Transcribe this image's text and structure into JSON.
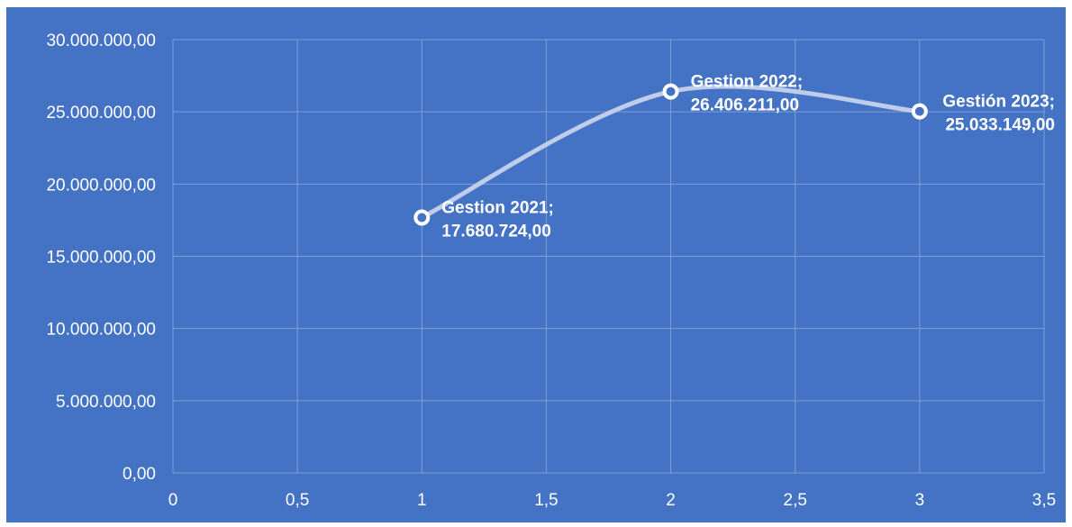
{
  "colors": {
    "background": "#4472c4",
    "gridline": "#7f9fd8",
    "line": "#bfcde9",
    "marker_fill": "#4472c4",
    "marker_stroke": "#ffffff",
    "text": "#ffffff"
  },
  "chart_data": {
    "type": "scatter",
    "title": "",
    "xlabel": "",
    "ylabel": "",
    "xlim": [
      0,
      3.5
    ],
    "ylim": [
      0,
      30000000
    ],
    "x_ticks": [
      0,
      0.5,
      1,
      1.5,
      2,
      2.5,
      3,
      3.5
    ],
    "x_tick_labels": [
      "0",
      "0,5",
      "1",
      "1,5",
      "2",
      "2,5",
      "3",
      "3,5"
    ],
    "y_ticks": [
      0,
      5000000,
      10000000,
      15000000,
      20000000,
      25000000,
      30000000
    ],
    "y_tick_labels": [
      "0,00",
      "5.000.000,00",
      "10.000.000,00",
      "15.000.000,00",
      "20.000.000,00",
      "25.000.000,00",
      "30.000.000,00"
    ],
    "grid": true,
    "smooth_line": true,
    "legend": "none",
    "series": [
      {
        "x": [
          1,
          2,
          3
        ],
        "y": [
          17680724,
          26406211,
          25033149
        ],
        "labels": [
          [
            "Gestion 2021;",
            "17.680.724,00"
          ],
          [
            "Gestion 2022;",
            "26.406.211,00"
          ],
          [
            "Gestión 2023;",
            "25.033.149,00"
          ]
        ]
      }
    ]
  }
}
